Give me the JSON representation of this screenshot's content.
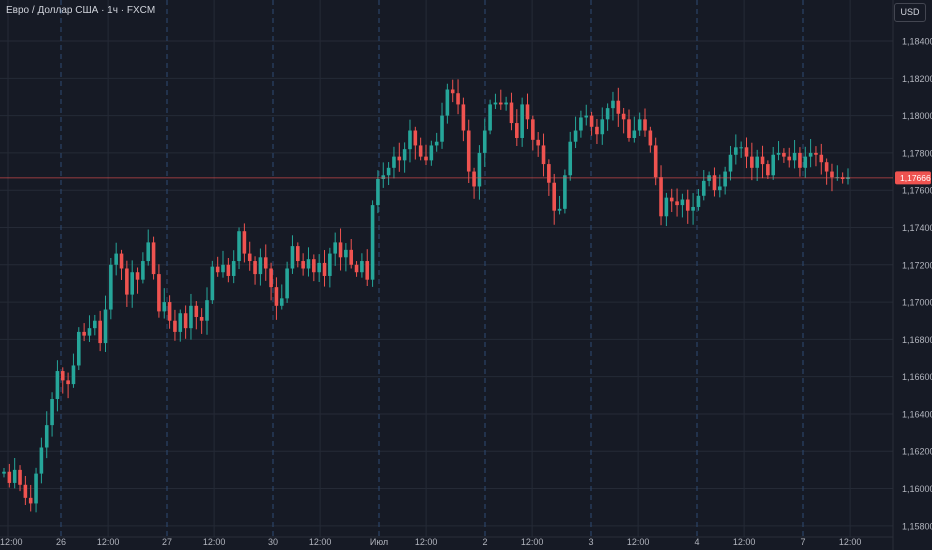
{
  "header": {
    "title": "Евро / Доллар США · 1ч · FXCM",
    "currency_button": "USD"
  },
  "colors": {
    "background": "#161a25",
    "grid": "#252a36",
    "day_separator": "#2d4b73",
    "up": "#26a69a",
    "down": "#ef5350",
    "axis_text": "#b2b5be",
    "price_line": "#ef5350"
  },
  "chart_data": {
    "type": "candlestick",
    "symbol": "Евро / Доллар США",
    "interval": "1ч",
    "source": "FXCM",
    "currency": "USD",
    "y_ticks": [
      "1,18400",
      "1,18200",
      "1,18000",
      "1,17800",
      "1,17600",
      "1,17400",
      "1,17200",
      "1,17000",
      "1,16800",
      "1,16600",
      "1,16400",
      "1,16200",
      "1,16000",
      "1,15800"
    ],
    "y_range": [
      1.1574,
      1.1862
    ],
    "x_labels": [
      "12:00",
      "26",
      "12:00",
      "27",
      "12:00",
      "30",
      "12:00",
      "Июл",
      "12:00",
      "2",
      "12:00",
      "3",
      "12:00",
      "4",
      "12:00",
      "7",
      "12:00"
    ],
    "x_label_sessions": [
      0,
      4.5,
      8.5,
      13.5,
      17.5,
      22.5,
      26.5,
      31.5,
      35.5,
      40.5,
      44.5,
      49.5,
      53.5,
      58.5,
      62.5,
      67.5,
      71.5
    ],
    "day_separator_sessions": [
      4.5,
      13.5,
      22.5,
      31.5,
      40.5,
      49.5,
      58.5,
      67.5
    ],
    "last_price": "1,17666",
    "last_price_value": 1.17666,
    "candle_closes": [
      1.1609,
      1.1603,
      1.161,
      1.1602,
      1.1595,
      1.1592,
      1.1608,
      1.1622,
      1.1634,
      1.1648,
      1.1663,
      1.1658,
      1.1656,
      1.1666,
      1.1684,
      1.1682,
      1.1686,
      1.169,
      1.1678,
      1.1696,
      1.172,
      1.1726,
      1.1718,
      1.1704,
      1.1716,
      1.1712,
      1.1722,
      1.1732,
      1.1715,
      1.1695,
      1.17,
      1.169,
      1.1684,
      1.1694,
      1.1686,
      1.1698,
      1.1692,
      1.169,
      1.1701,
      1.1719,
      1.1716,
      1.172,
      1.1714,
      1.1722,
      1.1738,
      1.1726,
      1.1722,
      1.1715,
      1.1724,
      1.1718,
      1.1708,
      1.1698,
      1.1702,
      1.1718,
      1.173,
      1.1722,
      1.1718,
      1.1723,
      1.1716,
      1.1721,
      1.1714,
      1.1726,
      1.1732,
      1.1724,
      1.1728,
      1.172,
      1.1716,
      1.1722,
      1.1712,
      1.1752,
      1.1766,
      1.1768,
      1.1772,
      1.1778,
      1.1776,
      1.1782,
      1.1792,
      1.1784,
      1.1778,
      1.1776,
      1.1784,
      1.1786,
      1.18,
      1.1814,
      1.1812,
      1.1806,
      1.1792,
      1.177,
      1.1762,
      1.178,
      1.1792,
      1.1806,
      1.1807,
      1.1806,
      1.1807,
      1.1796,
      1.1788,
      1.1806,
      1.1798,
      1.1787,
      1.1784,
      1.1774,
      1.1764,
      1.1749,
      1.175,
      1.1768,
      1.1786,
      1.1792,
      1.1799,
      1.18,
      1.1794,
      1.179,
      1.1798,
      1.1804,
      1.1808,
      1.1801,
      1.1798,
      1.1788,
      1.1792,
      1.1798,
      1.1792,
      1.1784,
      1.1767,
      1.1746,
      1.1756,
      1.1754,
      1.1752,
      1.1755,
      1.1749,
      1.1751,
      1.1757,
      1.1765,
      1.1768,
      1.176,
      1.1762,
      1.177,
      1.1779,
      1.1783,
      1.1783,
      1.1778,
      1.1772,
      1.1778,
      1.1774,
      1.1768,
      1.1779,
      1.178,
      1.1778,
      1.1776,
      1.178,
      1.1772,
      1.1778,
      1.178,
      1.1779,
      1.1775,
      1.177,
      1.1767,
      1.1767,
      1.1766,
      1.1767
    ]
  }
}
